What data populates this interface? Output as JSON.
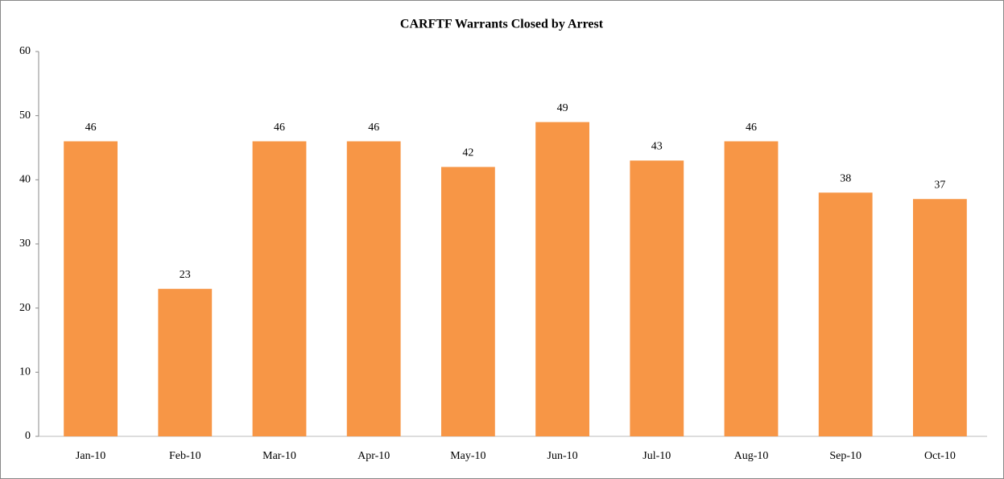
{
  "chart_data": {
    "type": "bar",
    "title": "CARFTF Warrants Closed by Arrest",
    "categories": [
      "Jan-10",
      "Feb-10",
      "Mar-10",
      "Apr-10",
      "May-10",
      "Jun-10",
      "Jul-10",
      "Aug-10",
      "Sep-10",
      "Oct-10"
    ],
    "values": [
      46,
      23,
      46,
      46,
      42,
      49,
      43,
      46,
      38,
      37
    ],
    "color": "#f79646",
    "ylim": [
      0,
      60
    ],
    "yticks": [
      0,
      10,
      20,
      30,
      40,
      50,
      60
    ],
    "grid": false
  }
}
